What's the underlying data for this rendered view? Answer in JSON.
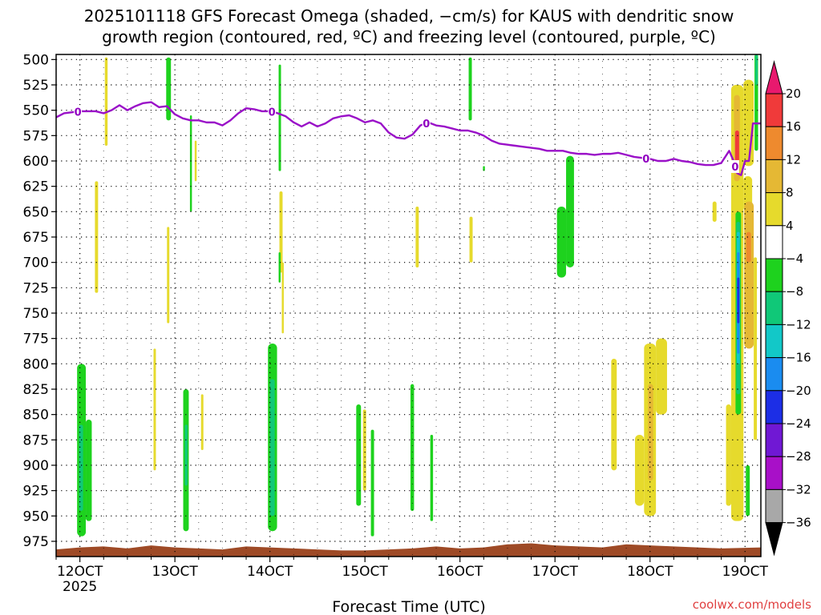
{
  "title_line1": "2025101118 GFS Forecast Omega (shaded, −cm/s) for KAUS with dendritic snow",
  "title_line2": "growth region (contoured, red, ºC) and freezing level (contoured, purple, ºC)",
  "credit": "coolwx.com/models",
  "chart_data": {
    "type": "heatmap",
    "xlabel": "Forecast Time (UTC)",
    "x_unit": "hour",
    "x_range": [
      18,
      196
    ],
    "x_ticks": [
      {
        "x": 24,
        "label": "12OCT",
        "sub": "2025"
      },
      {
        "x": 48,
        "label": "13OCT"
      },
      {
        "x": 72,
        "label": "14OCT"
      },
      {
        "x": 96,
        "label": "15OCT"
      },
      {
        "x": 120,
        "label": "16OCT"
      },
      {
        "x": 144,
        "label": "17OCT"
      },
      {
        "x": 168,
        "label": "18OCT"
      },
      {
        "x": 192,
        "label": "19OCT"
      }
    ],
    "y_unit": "hPa",
    "y_range": [
      990,
      495
    ],
    "y_ticks": [
      500,
      525,
      550,
      575,
      600,
      625,
      650,
      675,
      700,
      725,
      750,
      775,
      800,
      825,
      850,
      875,
      900,
      925,
      950,
      975
    ],
    "grid": true,
    "colorbar": {
      "labels": [
        "20",
        "16",
        "12",
        "8",
        "4",
        "−4",
        "−8",
        "−12",
        "−16",
        "−20",
        "−24",
        "−28",
        "−32",
        "−36"
      ],
      "bins": [
        {
          "color": "#f03a3a"
        },
        {
          "color": "#ee8a2e"
        },
        {
          "color": "#e5b834"
        },
        {
          "color": "#e6da2c"
        },
        {
          "color": "#ffffff"
        },
        {
          "color": "#1ed21e"
        },
        {
          "color": "#10c878"
        },
        {
          "color": "#12c8c8"
        },
        {
          "color": "#1a8cf0"
        },
        {
          "color": "#1c2ee6"
        },
        {
          "color": "#7018d4"
        },
        {
          "color": "#a810c8"
        },
        {
          "color": "#a8a8a8"
        }
      ],
      "top_arrow_color": "#e8196e",
      "bottom_arrow_color": "#000000"
    },
    "omega_regions": [
      {
        "x0": 23.3,
        "x1": 25.5,
        "y0": 800,
        "y1": 970,
        "value": -6,
        "color": "#1ed21e"
      },
      {
        "x0": 25.5,
        "x1": 27.0,
        "y0": 855,
        "y1": 955,
        "value": -6,
        "color": "#1ed21e"
      },
      {
        "x0": 23.8,
        "x1": 24.8,
        "y0": 860,
        "y1": 945,
        "value": -10,
        "color": "#10c878"
      },
      {
        "x0": 27.8,
        "x1": 28.6,
        "y0": 620,
        "y1": 730,
        "value": 5,
        "color": "#e6da2c"
      },
      {
        "x0": 30.3,
        "x1": 31.0,
        "y0": 498,
        "y1": 585,
        "value": 5,
        "color": "#e6da2c"
      },
      {
        "x0": 42.6,
        "x1": 43.2,
        "y0": 785,
        "y1": 905,
        "value": 5,
        "color": "#e6da2c"
      },
      {
        "x0": 45.8,
        "x1": 47.0,
        "y0": 498,
        "y1": 560,
        "value": -6,
        "color": "#1ed21e"
      },
      {
        "x0": 46.0,
        "x1": 46.6,
        "y0": 665,
        "y1": 760,
        "value": 5,
        "color": "#e6da2c"
      },
      {
        "x0": 50.1,
        "x1": 51.5,
        "y0": 825,
        "y1": 965,
        "value": -6,
        "color": "#1ed21e"
      },
      {
        "x0": 50.5,
        "x1": 51.2,
        "y0": 860,
        "y1": 920,
        "value": -10,
        "color": "#10c878"
      },
      {
        "x0": 51.8,
        "x1": 52.3,
        "y0": 555,
        "y1": 650,
        "value": -6,
        "color": "#1ed21e"
      },
      {
        "x0": 53.0,
        "x1": 53.5,
        "y0": 580,
        "y1": 620,
        "value": 5,
        "color": "#e6da2c"
      },
      {
        "x0": 54.6,
        "x1": 55.2,
        "y0": 830,
        "y1": 885,
        "value": 5,
        "color": "#e6da2c"
      },
      {
        "x0": 71.5,
        "x1": 73.8,
        "y0": 780,
        "y1": 965,
        "value": -6,
        "color": "#1ed21e"
      },
      {
        "x0": 72.0,
        "x1": 73.2,
        "y0": 815,
        "y1": 950,
        "value": -10,
        "color": "#10c878"
      },
      {
        "x0": 74.2,
        "x1": 74.8,
        "y0": 505,
        "y1": 610,
        "value": -6,
        "color": "#1ed21e"
      },
      {
        "x0": 74.4,
        "x1": 75.2,
        "y0": 630,
        "y1": 710,
        "value": 5,
        "color": "#e6da2c"
      },
      {
        "x0": 74.2,
        "x1": 74.7,
        "y0": 690,
        "y1": 720,
        "value": -6,
        "color": "#1ed21e"
      },
      {
        "x0": 75.0,
        "x1": 75.5,
        "y0": 700,
        "y1": 770,
        "value": 5,
        "color": "#e6da2c"
      },
      {
        "x0": 93.8,
        "x1": 95.0,
        "y0": 840,
        "y1": 940,
        "value": -6,
        "color": "#1ed21e"
      },
      {
        "x0": 95.5,
        "x1": 96.3,
        "y0": 845,
        "y1": 925,
        "value": 5,
        "color": "#e6da2c"
      },
      {
        "x0": 97.5,
        "x1": 98.3,
        "y0": 865,
        "y1": 970,
        "value": -6,
        "color": "#1ed21e"
      },
      {
        "x0": 108.8,
        "x1": 109.6,
        "y0": 645,
        "y1": 705,
        "value": 5,
        "color": "#e6da2c"
      },
      {
        "x0": 107.5,
        "x1": 108.4,
        "y0": 820,
        "y1": 945,
        "value": -6,
        "color": "#1ed21e"
      },
      {
        "x0": 112.5,
        "x1": 113.2,
        "y0": 870,
        "y1": 955,
        "value": -6,
        "color": "#1ed21e"
      },
      {
        "x0": 122.4,
        "x1": 123.2,
        "y0": 655,
        "y1": 700,
        "value": 5,
        "color": "#e6da2c"
      },
      {
        "x0": 122.2,
        "x1": 123.0,
        "y0": 498,
        "y1": 560,
        "value": -6,
        "color": "#1ed21e"
      },
      {
        "x0": 125.8,
        "x1": 126.3,
        "y0": 605,
        "y1": 610,
        "value": -6,
        "color": "#1ed21e"
      },
      {
        "x0": 144.5,
        "x1": 146.8,
        "y0": 645,
        "y1": 715,
        "value": -6,
        "color": "#1ed21e"
      },
      {
        "x0": 146.8,
        "x1": 148.8,
        "y0": 595,
        "y1": 705,
        "value": -6,
        "color": "#1ed21e"
      },
      {
        "x0": 158.2,
        "x1": 159.6,
        "y0": 795,
        "y1": 905,
        "value": 5,
        "color": "#e6da2c"
      },
      {
        "x0": 164.2,
        "x1": 166.5,
        "y0": 870,
        "y1": 940,
        "value": 5,
        "color": "#e6da2c"
      },
      {
        "x0": 166.5,
        "x1": 169.5,
        "y0": 780,
        "y1": 950,
        "value": 5,
        "color": "#e6da2c"
      },
      {
        "x0": 169.5,
        "x1": 172.3,
        "y0": 775,
        "y1": 850,
        "value": 5,
        "color": "#e6da2c"
      },
      {
        "x0": 167.5,
        "x1": 168.8,
        "y0": 820,
        "y1": 915,
        "value": 10,
        "color": "#e5b834"
      },
      {
        "x0": 183.8,
        "x1": 184.8,
        "y0": 640,
        "y1": 660,
        "value": 5,
        "color": "#e6da2c"
      },
      {
        "x0": 188.5,
        "x1": 191.6,
        "y0": 525,
        "y1": 955,
        "value": 5,
        "color": "#e6da2c"
      },
      {
        "x0": 187.2,
        "x1": 188.5,
        "y0": 840,
        "y1": 940,
        "value": 5,
        "color": "#e6da2c"
      },
      {
        "x0": 191.6,
        "x1": 194.2,
        "y0": 520,
        "y1": 605,
        "value": 5,
        "color": "#e6da2c"
      },
      {
        "x0": 189.2,
        "x1": 190.7,
        "y0": 535,
        "y1": 620,
        "value": 10,
        "color": "#e5b834"
      },
      {
        "x0": 189.5,
        "x1": 190.5,
        "y0": 570,
        "y1": 610,
        "value": 18,
        "color": "#f03a3a"
      },
      {
        "x0": 191.6,
        "x1": 193.8,
        "y0": 615,
        "y1": 650,
        "value": 5,
        "color": "#e6da2c"
      },
      {
        "x0": 191.8,
        "x1": 194.2,
        "y0": 640,
        "y1": 785,
        "value": 10,
        "color": "#e5b834"
      },
      {
        "x0": 194.2,
        "x1": 195.0,
        "y0": 695,
        "y1": 875,
        "value": 5,
        "color": "#e6da2c"
      },
      {
        "x0": 192.3,
        "x1": 193.5,
        "y0": 670,
        "y1": 700,
        "value": 14,
        "color": "#ee8a2e"
      },
      {
        "x0": 189.6,
        "x1": 191.0,
        "y0": 650,
        "y1": 850,
        "value": -6,
        "color": "#1ed21e"
      },
      {
        "x0": 189.8,
        "x1": 190.8,
        "y0": 660,
        "y1": 830,
        "value": -10,
        "color": "#10c878"
      },
      {
        "x0": 189.9,
        "x1": 190.7,
        "y0": 670,
        "y1": 800,
        "value": -14,
        "color": "#12c8c8"
      },
      {
        "x0": 190.0,
        "x1": 190.6,
        "y0": 690,
        "y1": 790,
        "value": -18,
        "color": "#1a8cf0"
      },
      {
        "x0": 190.0,
        "x1": 190.6,
        "y0": 715,
        "y1": 760,
        "value": -22,
        "color": "#1c2ee6"
      },
      {
        "x0": 192.2,
        "x1": 193.2,
        "y0": 900,
        "y1": 950,
        "value": -6,
        "color": "#1ed21e"
      },
      {
        "x0": 194.4,
        "x1": 195.3,
        "y0": 495,
        "y1": 590,
        "value": -6,
        "color": "#1ed21e"
      },
      {
        "x0": 194.6,
        "x1": 195.2,
        "y0": 495,
        "y1": 525,
        "value": -10,
        "color": "#10c878"
      }
    ],
    "freezing_level": {
      "color": "#9a10c8",
      "label": "0",
      "label_x": [
        23.5,
        72.5,
        111.5,
        167,
        189.5
      ],
      "x": [
        18,
        20,
        22,
        24,
        26,
        28,
        30,
        32,
        34,
        36,
        38,
        40,
        42,
        44,
        46,
        48,
        50,
        52,
        54,
        56,
        58,
        60,
        62,
        64,
        66,
        68,
        70,
        72,
        74,
        76,
        78,
        80,
        82,
        84,
        86,
        88,
        90,
        92,
        94,
        96,
        98,
        100,
        102,
        104,
        106,
        108,
        110,
        112,
        114,
        116,
        118,
        120,
        122,
        124,
        126,
        128,
        130,
        132,
        134,
        136,
        138,
        140,
        142,
        144,
        146,
        148,
        150,
        152,
        154,
        156,
        158,
        160,
        162,
        164,
        166,
        168,
        170,
        172,
        174,
        176,
        178,
        180,
        182,
        184,
        186,
        188,
        189,
        190,
        191,
        192,
        193,
        194,
        195,
        196
      ],
      "y": [
        557,
        553,
        552,
        551,
        551,
        551,
        553,
        550,
        545,
        550,
        546,
        543,
        542,
        547,
        546,
        554,
        558,
        560,
        560,
        562,
        562,
        565,
        560,
        553,
        548,
        549,
        551,
        551,
        553,
        556,
        562,
        566,
        562,
        566,
        563,
        558,
        556,
        555,
        558,
        562,
        560,
        563,
        572,
        577,
        578,
        574,
        565,
        562,
        565,
        566,
        568,
        570,
        570,
        572,
        575,
        580,
        583,
        584,
        585,
        586,
        587,
        588,
        590,
        590,
        590,
        592,
        593,
        593,
        594,
        593,
        593,
        592,
        594,
        596,
        597,
        598,
        600,
        600,
        598,
        600,
        601,
        603,
        604,
        604,
        602,
        590,
        599,
        612,
        614,
        600,
        600,
        563,
        563,
        563
      ]
    },
    "terrain": {
      "color": "#9e4a26",
      "x": [
        18,
        24,
        30,
        36,
        42,
        48,
        54,
        60,
        66,
        72,
        78,
        84,
        90,
        96,
        102,
        108,
        114,
        120,
        126,
        132,
        138,
        144,
        150,
        156,
        162,
        168,
        174,
        180,
        186,
        196
      ],
      "top_hpa": [
        983,
        981,
        980,
        982,
        979,
        981,
        982,
        983,
        980,
        981,
        982,
        983,
        984,
        984,
        983,
        982,
        980,
        982,
        981,
        978,
        977,
        979,
        980,
        981,
        978,
        979,
        980,
        981,
        982,
        981
      ]
    }
  }
}
